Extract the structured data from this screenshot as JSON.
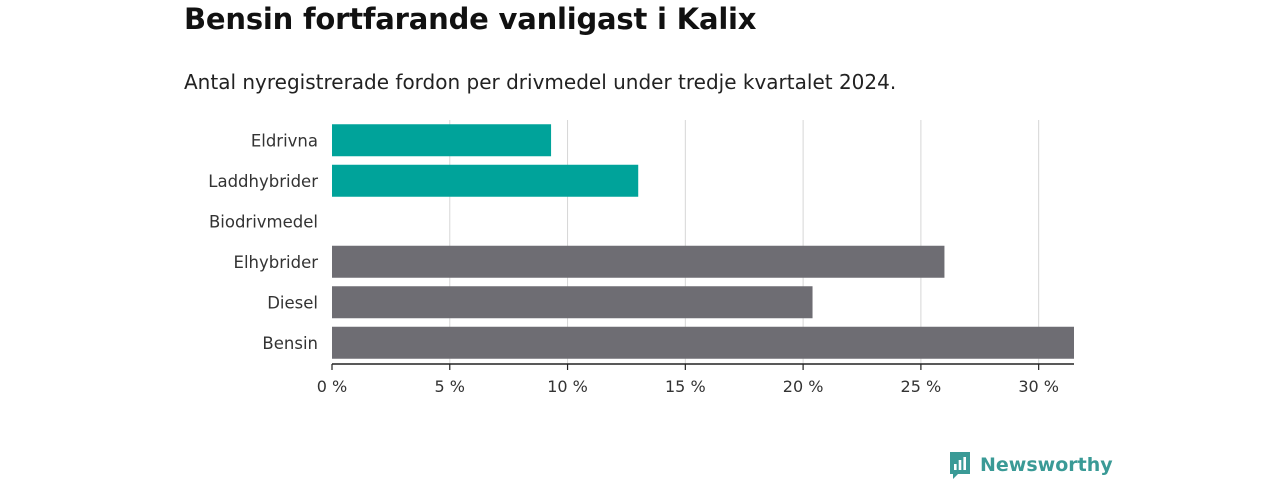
{
  "colors": {
    "highlight": "#00a39a",
    "neutral": "#6e6d73",
    "grid": "#d6d6d6",
    "axis": "#222222",
    "brand": "#3a9a96"
  },
  "brand": {
    "name": "Newsworthy",
    "icon": "newsworthy-logo-icon"
  },
  "chart_data": {
    "type": "bar",
    "orientation": "horizontal",
    "title": "Bensin fortfarande vanligast i Kalix",
    "subtitle": "Antal nyregistrerade fordon per drivmedel under tredje kvartalet 2024.",
    "categories": [
      "Eldrivna",
      "Laddhybrider",
      "Biodrivmedel",
      "Elhybrider",
      "Diesel",
      "Bensin"
    ],
    "values": [
      9.3,
      13.0,
      0,
      26.0,
      20.4,
      31.5
    ],
    "highlighted": [
      true,
      true,
      false,
      false,
      false,
      false
    ],
    "xlim": [
      0,
      31.5
    ],
    "xticks": [
      0,
      5,
      10,
      15,
      20,
      25,
      30
    ],
    "xtick_labels": [
      "0 %",
      "5 %",
      "10 %",
      "15 %",
      "20 %",
      "25 %",
      "30 %"
    ],
    "grid": true
  }
}
